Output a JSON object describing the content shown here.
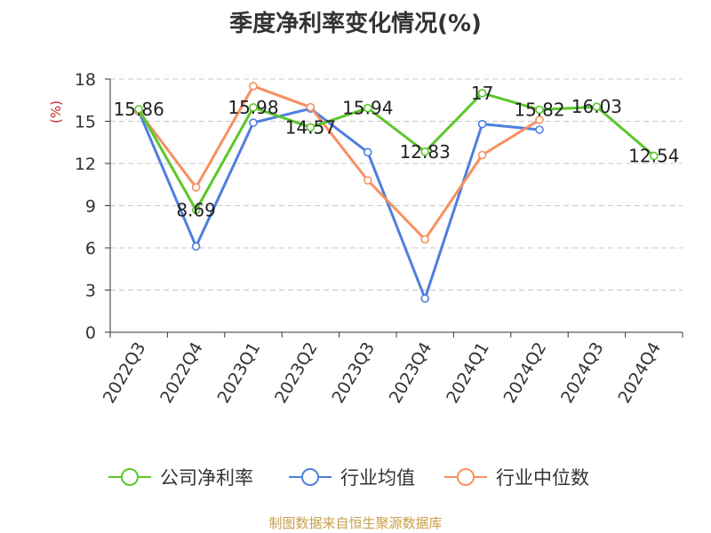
{
  "chart_data": {
    "type": "line",
    "title": "季度净利率变化情况(%)",
    "ylabel": "(%)",
    "xlabel": "",
    "ylim": [
      0,
      18
    ],
    "yticks": [
      0,
      3,
      6,
      9,
      12,
      15,
      18
    ],
    "grid": true,
    "legend_position": "bottom",
    "categories": [
      "2022Q3",
      "2022Q4",
      "2023Q1",
      "2023Q2",
      "2023Q3",
      "2023Q4",
      "2024Q1",
      "2024Q2",
      "2024Q3",
      "2024Q4"
    ],
    "series": [
      {
        "name": "公司净利率",
        "color": "#5cc72a",
        "values": [
          15.86,
          8.69,
          15.98,
          14.57,
          15.94,
          12.83,
          17,
          15.82,
          16.03,
          12.54
        ],
        "labels": [
          "15.86",
          "8.69",
          "15.98",
          "14.57",
          "15.94",
          "12.83",
          "17",
          "15.82",
          "16.03",
          "12.54"
        ]
      },
      {
        "name": "行业均值",
        "color": "#4e7fdf",
        "values": [
          15.7,
          6.1,
          14.9,
          15.9,
          12.8,
          2.4,
          14.8,
          14.4,
          null,
          null
        ]
      },
      {
        "name": "行业中位数",
        "color": "#f79060",
        "values": [
          15.7,
          10.3,
          17.5,
          16.0,
          10.8,
          6.6,
          12.6,
          15.1,
          null,
          null
        ]
      }
    ]
  },
  "footer": {
    "source": "制图数据来自恒生聚源数据库"
  }
}
